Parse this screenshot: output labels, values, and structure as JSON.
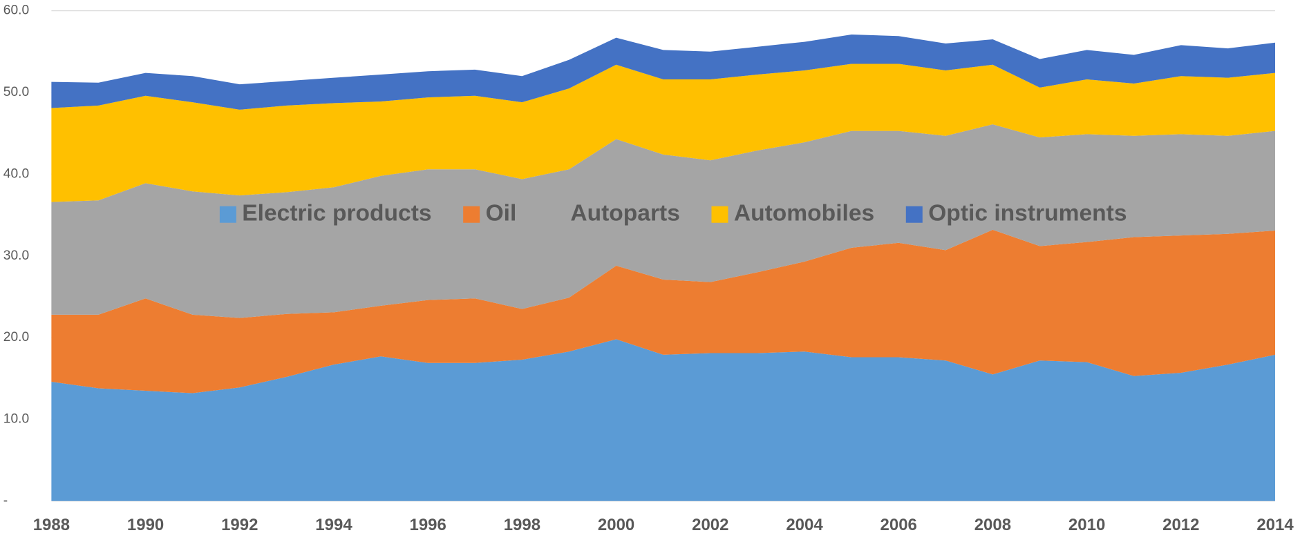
{
  "chart_data": {
    "type": "stacked_area",
    "categories": [
      "1988",
      null,
      "1990",
      null,
      "1992",
      null,
      "1994",
      null,
      "1996",
      null,
      "1998",
      null,
      "2000",
      null,
      "2002",
      null,
      "2004",
      null,
      "2006",
      null,
      "2008",
      null,
      "2010",
      null,
      "2012",
      null,
      "2014"
    ],
    "series": [
      {
        "name": "Electric products",
        "color": "#5b9bd5",
        "values": [
          14.6,
          13.8,
          13.5,
          13.2,
          13.9,
          15.2,
          16.7,
          17.7,
          16.9,
          16.9,
          17.3,
          18.3,
          19.8,
          17.9,
          18.1,
          18.1,
          18.3,
          17.6,
          17.6,
          17.2,
          15.5,
          17.2,
          17.0,
          15.3,
          15.7,
          16.7,
          17.9
        ]
      },
      {
        "name": "Oil",
        "color": "#ed7d31",
        "values": [
          8.2,
          9.0,
          11.3,
          9.6,
          8.5,
          7.7,
          6.4,
          6.2,
          7.7,
          7.9,
          6.2,
          6.6,
          9.0,
          9.2,
          8.7,
          9.9,
          11.0,
          13.4,
          14.0,
          13.5,
          17.7,
          14.0,
          14.7,
          17.0,
          16.8,
          16.0,
          15.2
        ]
      },
      {
        "name": "Autoparts",
        "color": "#a5a5a5",
        "values": [
          13.8,
          14.0,
          14.1,
          15.1,
          15.0,
          14.9,
          15.3,
          15.9,
          16.0,
          15.8,
          15.9,
          15.7,
          15.5,
          15.3,
          14.9,
          14.9,
          14.6,
          14.3,
          13.7,
          14.0,
          12.9,
          13.3,
          13.2,
          12.4,
          12.4,
          12.0,
          12.2
        ]
      },
      {
        "name": "Automobiles",
        "color": "#ffc000",
        "values": [
          11.5,
          11.6,
          10.7,
          10.9,
          10.5,
          10.6,
          10.3,
          9.1,
          8.8,
          9.0,
          9.4,
          9.9,
          9.1,
          9.2,
          9.9,
          9.3,
          8.8,
          8.2,
          8.2,
          8.0,
          7.3,
          6.1,
          6.7,
          6.4,
          7.1,
          7.1,
          7.1
        ]
      },
      {
        "name": "Optic instruments",
        "color": "#4472c4",
        "values": [
          3.2,
          2.8,
          2.8,
          3.2,
          3.1,
          3.0,
          3.1,
          3.3,
          3.2,
          3.2,
          3.2,
          3.5,
          3.3,
          3.6,
          3.4,
          3.4,
          3.5,
          3.6,
          3.4,
          3.3,
          3.1,
          3.5,
          3.6,
          3.5,
          3.8,
          3.6,
          3.7
        ]
      }
    ],
    "ylim": [
      0,
      60
    ],
    "yticks": [
      {
        "value": 0,
        "label": "-"
      },
      {
        "value": 10,
        "label": "10.0"
      },
      {
        "value": 20,
        "label": "20.0"
      },
      {
        "value": 30,
        "label": "30.0"
      },
      {
        "value": 40,
        "label": "40.0"
      },
      {
        "value": 50,
        "label": "50.0"
      },
      {
        "value": 60,
        "label": "60.0"
      }
    ],
    "grid": true,
    "legend": "center"
  }
}
